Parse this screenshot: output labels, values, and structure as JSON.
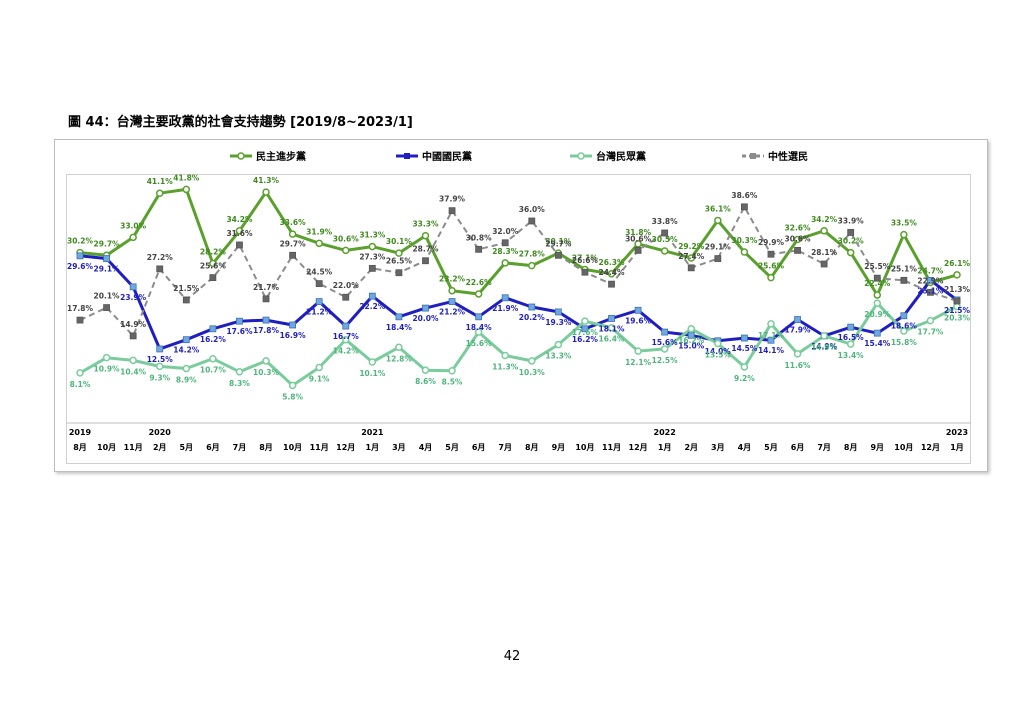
{
  "page": {
    "figure_caption": "圖 44：台灣主要政黨的社會支持趨勢  [2019/8~2023/1]",
    "page_number": "42"
  },
  "chart_data": {
    "type": "line",
    "legend_position": "top",
    "grid": false,
    "ylim": [
      0,
      45
    ],
    "categories": [
      {
        "year": "2019",
        "month": "8月"
      },
      {
        "year": "",
        "month": "10月"
      },
      {
        "year": "",
        "month": "11月"
      },
      {
        "year": "2020",
        "month": "2月"
      },
      {
        "year": "",
        "month": "5月"
      },
      {
        "year": "",
        "month": "6月"
      },
      {
        "year": "",
        "month": "7月"
      },
      {
        "year": "",
        "month": "8月"
      },
      {
        "year": "",
        "month": "10月"
      },
      {
        "year": "",
        "month": "11月"
      },
      {
        "year": "",
        "month": "12月"
      },
      {
        "year": "2021",
        "month": "1月"
      },
      {
        "year": "",
        "month": "3月"
      },
      {
        "year": "",
        "month": "4月"
      },
      {
        "year": "",
        "month": "5月"
      },
      {
        "year": "",
        "month": "6月"
      },
      {
        "year": "",
        "month": "7月"
      },
      {
        "year": "",
        "month": "8月"
      },
      {
        "year": "",
        "month": "9月"
      },
      {
        "year": "",
        "month": "10月"
      },
      {
        "year": "",
        "month": "11月"
      },
      {
        "year": "",
        "month": "12月"
      },
      {
        "year": "2022",
        "month": "1月"
      },
      {
        "year": "",
        "month": "2月"
      },
      {
        "year": "",
        "month": "3月"
      },
      {
        "year": "",
        "month": "4月"
      },
      {
        "year": "",
        "month": "5月"
      },
      {
        "year": "",
        "month": "6月"
      },
      {
        "year": "",
        "month": "7月"
      },
      {
        "year": "",
        "month": "8月"
      },
      {
        "year": "",
        "month": "9月"
      },
      {
        "year": "",
        "month": "10月"
      },
      {
        "year": "",
        "month": "12月"
      },
      {
        "year": "2023",
        "month": "1月"
      }
    ],
    "series": [
      {
        "name": "民主進步黨",
        "color": "#5aa02c",
        "dashed": false,
        "marker": "circle",
        "values": [
          30.2,
          29.7,
          33.0,
          41.1,
          41.8,
          28.2,
          34.2,
          41.3,
          33.6,
          31.9,
          30.6,
          31.3,
          30.1,
          33.3,
          23.2,
          22.6,
          28.3,
          27.8,
          30.1,
          27.1,
          26.3,
          31.8,
          30.5,
          29.2,
          36.1,
          30.3,
          25.6,
          32.6,
          34.2,
          30.2,
          22.4,
          33.5,
          24.7,
          26.1
        ]
      },
      {
        "name": "中國國民黨",
        "color": "#1f1fbf",
        "dashed": false,
        "marker": "square",
        "values": [
          29.6,
          29.1,
          23.9,
          12.5,
          14.2,
          16.2,
          17.6,
          17.8,
          16.9,
          21.2,
          16.7,
          22.2,
          18.4,
          20.0,
          21.2,
          18.4,
          21.9,
          20.2,
          19.3,
          16.2,
          18.1,
          19.6,
          15.6,
          15.0,
          14.0,
          14.5,
          14.1,
          17.9,
          14.9,
          16.5,
          15.4,
          18.6,
          25.1,
          21.5
        ]
      },
      {
        "name": "台灣民眾黨",
        "color": "#7acc9c",
        "dashed": false,
        "marker": "circle",
        "values": [
          8.1,
          10.9,
          10.4,
          9.3,
          8.9,
          10.7,
          8.3,
          10.3,
          5.8,
          9.1,
          14.2,
          10.1,
          12.8,
          8.6,
          8.5,
          15.6,
          11.3,
          10.3,
          13.3,
          17.6,
          16.4,
          12.1,
          12.5,
          16.2,
          13.5,
          9.2,
          17.1,
          11.6,
          14.9,
          13.4,
          20.9,
          15.8,
          17.7,
          20.3
        ]
      },
      {
        "name": "中性選民",
        "color": "#8c8c8c",
        "dashed": true,
        "marker": "square",
        "values": [
          17.8,
          20.1,
          14.9,
          27.2,
          21.5,
          25.6,
          31.6,
          21.7,
          29.7,
          24.5,
          22.0,
          27.3,
          26.5,
          28.7,
          37.9,
          30.8,
          32.0,
          36.0,
          29.7,
          26.6,
          24.4,
          30.6,
          33.8,
          27.4,
          29.1,
          38.6,
          29.9,
          30.6,
          28.1,
          33.9,
          25.5,
          25.1,
          22.9,
          21.3
        ]
      }
    ]
  }
}
